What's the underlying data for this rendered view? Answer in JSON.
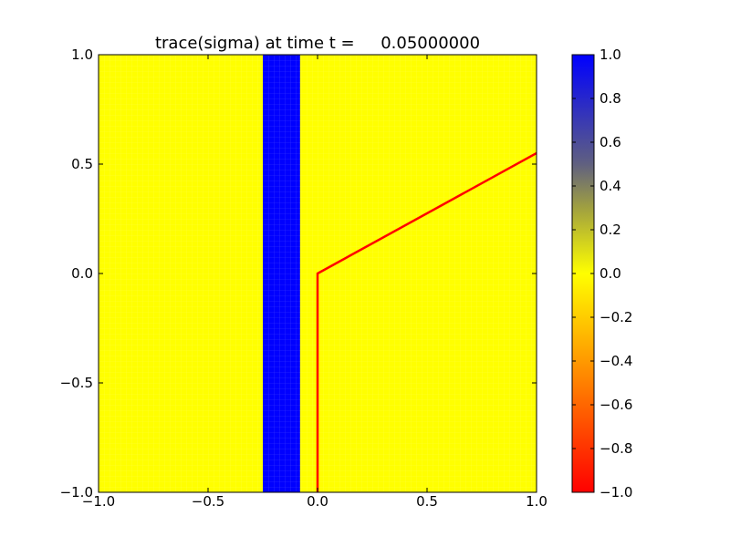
{
  "chart_data": {
    "type": "heatmap",
    "title": "trace(sigma) at time t =     0.05000000",
    "xlim": [
      -1.0,
      1.0
    ],
    "ylim": [
      -1.0,
      1.0
    ],
    "x_ticks": [
      {
        "value": -1.0,
        "label": "−1.0"
      },
      {
        "value": -0.5,
        "label": "−0.5"
      },
      {
        "value": 0.0,
        "label": "0.0"
      },
      {
        "value": 0.5,
        "label": "0.5"
      },
      {
        "value": 1.0,
        "label": "1.0"
      }
    ],
    "y_ticks": [
      {
        "value": -1.0,
        "label": "−1.0"
      },
      {
        "value": -0.5,
        "label": "−0.5"
      },
      {
        "value": 0.0,
        "label": "0.0"
      },
      {
        "value": 0.5,
        "label": "0.5"
      },
      {
        "value": 1.0,
        "label": "1.0"
      }
    ],
    "field": {
      "background_value": 0.0,
      "bands": [
        {
          "x_range": [
            -0.25,
            -0.08
          ],
          "value": 1.0
        }
      ]
    },
    "lines": [
      {
        "color": "#ff0000",
        "points": [
          [
            0.0,
            -1.0
          ],
          [
            0.0,
            0.0
          ],
          [
            1.0,
            0.55
          ]
        ]
      }
    ],
    "colorbar": {
      "range": [
        -1.0,
        1.0
      ],
      "stops": [
        {
          "value": -1.0,
          "color": "#ff0000"
        },
        {
          "value": -0.5,
          "color": "#ff8000"
        },
        {
          "value": 0.0,
          "color": "#ffff00"
        },
        {
          "value": 0.3,
          "color": "#a0a040"
        },
        {
          "value": 0.5,
          "color": "#606080"
        },
        {
          "value": 1.0,
          "color": "#0000ff"
        }
      ],
      "ticks": [
        {
          "value": 1.0,
          "label": "1.0"
        },
        {
          "value": 0.8,
          "label": "0.8"
        },
        {
          "value": 0.6,
          "label": "0.6"
        },
        {
          "value": 0.4,
          "label": "0.4"
        },
        {
          "value": 0.2,
          "label": "0.2"
        },
        {
          "value": 0.0,
          "label": "0.0"
        },
        {
          "value": -0.2,
          "label": "−0.2"
        },
        {
          "value": -0.4,
          "label": "−0.4"
        },
        {
          "value": -0.6,
          "label": "−0.6"
        },
        {
          "value": -0.8,
          "label": "−0.8"
        },
        {
          "value": -1.0,
          "label": "−1.0"
        }
      ]
    }
  }
}
